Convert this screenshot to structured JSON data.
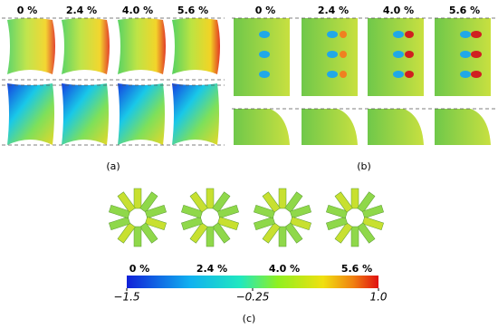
{
  "panels": {
    "a": {
      "headers": [
        "0 %",
        "2.4 %",
        "4.0 %",
        "5.6 %"
      ],
      "label": "(a)"
    },
    "b": {
      "headers": [
        "0 %",
        "2.4 %",
        "4.0 %",
        "5.6 %"
      ],
      "label": "(b)"
    },
    "c": {
      "headers": [
        "0 %",
        "2.4 %",
        "4.0 %",
        "5.6 %"
      ],
      "label": "(c)"
    }
  },
  "colorbar": {
    "lim": [
      -1.5,
      1.0
    ],
    "ticks": [
      {
        "value": -1.5,
        "label": "−1.5"
      },
      {
        "value": -0.25,
        "label": "−0.25"
      },
      {
        "value": 1.0,
        "label": "1.0"
      }
    ]
  }
}
